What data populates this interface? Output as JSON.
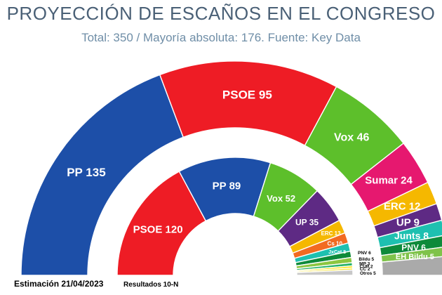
{
  "header": {
    "title": "PROYECCIÓN DE ESCAÑOS EN EL CONGRESO",
    "subtitle": "Total: 350 / Mayoría absoluta: 176. Fuente: Key Data"
  },
  "chart_data": [
    {
      "type": "pie",
      "shape": "semicircle",
      "total": 350,
      "caption": "Estimación 21/04/2023",
      "slices": [
        {
          "party": "PP",
          "seats": 135,
          "label": "PP 135",
          "color": "#1d4fa8"
        },
        {
          "party": "PSOE",
          "seats": 95,
          "label": "PSOE 95",
          "color": "#ee1c25"
        },
        {
          "party": "Vox",
          "seats": 46,
          "label": "Vox 46",
          "color": "#5dbf2b"
        },
        {
          "party": "Sumar",
          "seats": 24,
          "label": "Sumar 24",
          "color": "#e6186f"
        },
        {
          "party": "ERC",
          "seats": 12,
          "label": "ERC 12",
          "color": "#f5b800"
        },
        {
          "party": "UP",
          "seats": 9,
          "label": "UP 9",
          "color": "#5e2a84"
        },
        {
          "party": "Junts",
          "seats": 8,
          "label": "Junts 8",
          "color": "#1ec0b0"
        },
        {
          "party": "PNV",
          "seats": 6,
          "label": "PNV 6",
          "color": "#0e8a3a"
        },
        {
          "party": "EH Bildu",
          "seats": 5,
          "label": "EH Bildu 5",
          "color": "#7fc34a"
        },
        {
          "party": "Otros",
          "seats": 10,
          "label": "",
          "color": "#aaaaaa"
        }
      ]
    },
    {
      "type": "pie",
      "shape": "semicircle",
      "total": 350,
      "caption": "Resultados 10-N",
      "slices": [
        {
          "party": "PSOE",
          "seats": 120,
          "label": "PSOE 120",
          "color": "#ee1c25"
        },
        {
          "party": "PP",
          "seats": 89,
          "label": "PP 89",
          "color": "#1d4fa8"
        },
        {
          "party": "Vox",
          "seats": 52,
          "label": "Vox 52",
          "color": "#5dbf2b"
        },
        {
          "party": "UP",
          "seats": 35,
          "label": "UP 35",
          "color": "#5e2a84"
        },
        {
          "party": "ERC",
          "seats": 13,
          "label": "ERC 13",
          "color": "#f5b800"
        },
        {
          "party": "Cs",
          "seats": 10,
          "label": "Cs 10",
          "color": "#f26a21"
        },
        {
          "party": "JxCat",
          "seats": 8,
          "label": "JxCat 8",
          "color": "#1ec0b0"
        },
        {
          "party": "PNV",
          "seats": 6,
          "label": "PNV 6",
          "color": "#0e8a3a"
        },
        {
          "party": "Bildu",
          "seats": 5,
          "label": "Bildu 5",
          "color": "#8cc63f"
        },
        {
          "party": "MP",
          "seats": 3,
          "label": "MP 3",
          "color": "#28b36b"
        },
        {
          "party": "CUP",
          "seats": 2,
          "label": "CUP 2",
          "color": "#ffe000"
        },
        {
          "party": "CC",
          "seats": 2,
          "label": "CC 2",
          "color": "#f7e64a"
        },
        {
          "party": "Otros",
          "seats": 5,
          "label": "Otros 5",
          "color": "#c8c8c8"
        }
      ]
    }
  ]
}
